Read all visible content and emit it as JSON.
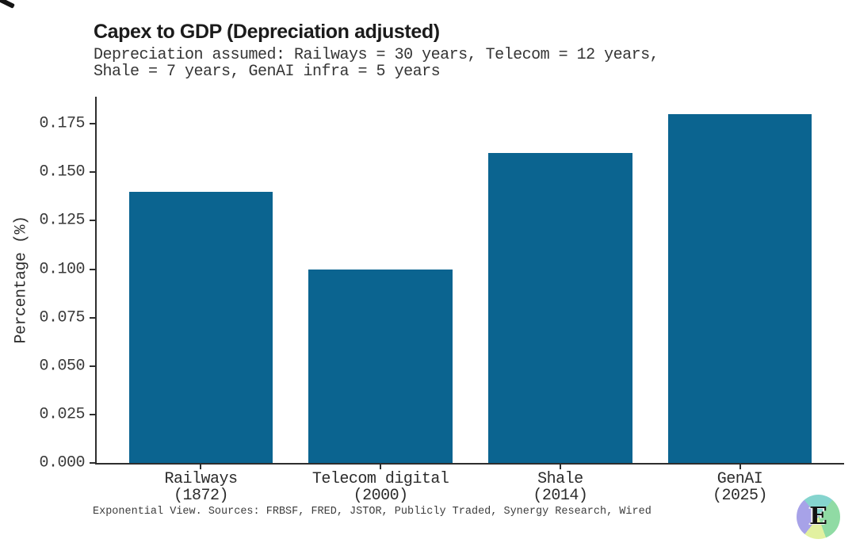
{
  "chart_data": {
    "type": "bar",
    "title": "Capex to GDP (Depreciation adjusted)",
    "subtitle_lines": [
      "Depreciation assumed: Railways = 30 years, Telecom = 12 years,",
      "Shale = 7 years, GenAI infra = 5 years"
    ],
    "categories": [
      "Railways",
      "Telecom digital",
      "Shale",
      "GenAI"
    ],
    "category_years": [
      "(1872)",
      "(2000)",
      "(2014)",
      "(2025)"
    ],
    "values": [
      0.14,
      0.1,
      0.16,
      0.18
    ],
    "xlabel": "",
    "ylabel": "Percentage (%)",
    "ylim": [
      0,
      0.189
    ],
    "ytick_values": [
      0,
      0.025,
      0.05,
      0.075,
      0.1,
      0.125,
      0.15,
      0.175
    ],
    "ytick_labels": [
      "0.000",
      "0.025",
      "0.050",
      "0.075",
      "0.100",
      "0.125",
      "0.150",
      "0.175"
    ],
    "bar_color": "#0b6490",
    "axis_color": "#2e2e2e",
    "grid": false,
    "legend": "none",
    "source_note": "Exponential View. Sources: FRBSF, FRED, JSTOR, Publicly Traded, Synergy Research, Wired"
  },
  "logo": {
    "letter": "E",
    "segment_colors": {
      "top": "#85d4ce",
      "right": "#90dba4",
      "bottom": "#e2f1a0",
      "left": "#a7a2e8"
    }
  }
}
